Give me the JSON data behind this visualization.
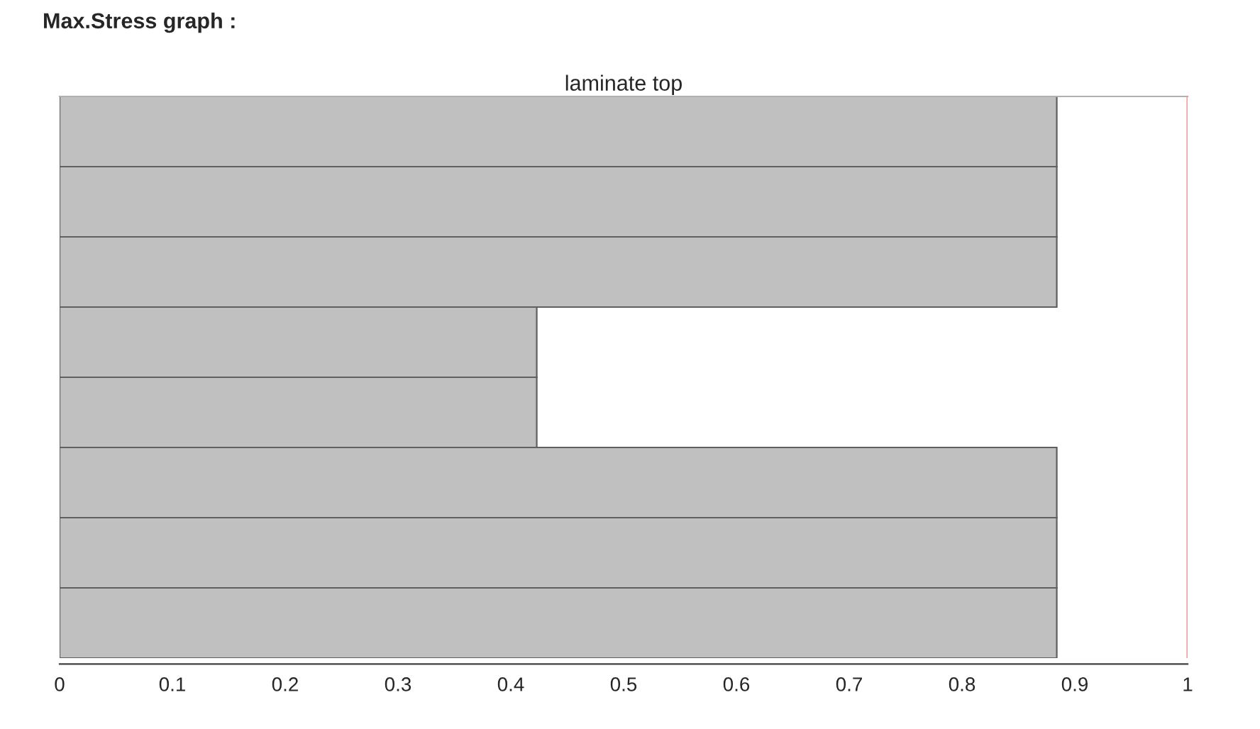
{
  "chart_data": {
    "type": "bar",
    "orientation": "horizontal",
    "title": "Max.Stress graph :",
    "subtitle": "laminate top",
    "categories": [
      null,
      null,
      null,
      null,
      null,
      null,
      null,
      null
    ],
    "values": [
      0.884,
      0.884,
      0.884,
      0.423,
      0.423,
      0.884,
      0.884,
      0.884
    ],
    "color": "#c0c0c0",
    "xlim": [
      0,
      1
    ],
    "xticks": [
      0,
      0.1,
      0.2,
      0.3,
      0.4,
      0.5,
      0.6,
      0.7,
      0.8,
      0.9,
      1
    ],
    "ref_lines": [
      {
        "axis": "x",
        "value": 1,
        "color": "#f4a0a0"
      }
    ],
    "grid": false,
    "legend": false
  }
}
